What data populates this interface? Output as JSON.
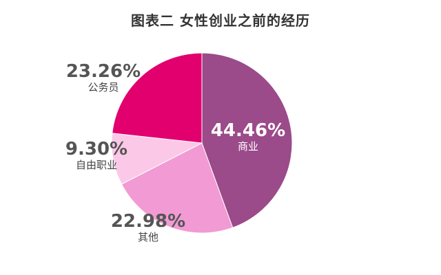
{
  "chart_data": {
    "type": "pie",
    "title": "图表二  女性创业之前的经历",
    "slices": [
      {
        "label": "商业",
        "value": 44.46,
        "value_label": "44.46%",
        "color": "#9b4a8a"
      },
      {
        "label": "其他",
        "value": 22.98,
        "value_label": "22.98%",
        "color": "#f29ad3"
      },
      {
        "label": "自由职业",
        "value": 9.3,
        "value_label": "9.30%",
        "color": "#fbc8e8"
      },
      {
        "label": "公务员",
        "value": 23.26,
        "value_label": "23.26%",
        "color": "#e2006f"
      }
    ],
    "start_angle_deg": 0,
    "direction": "clockwise"
  }
}
